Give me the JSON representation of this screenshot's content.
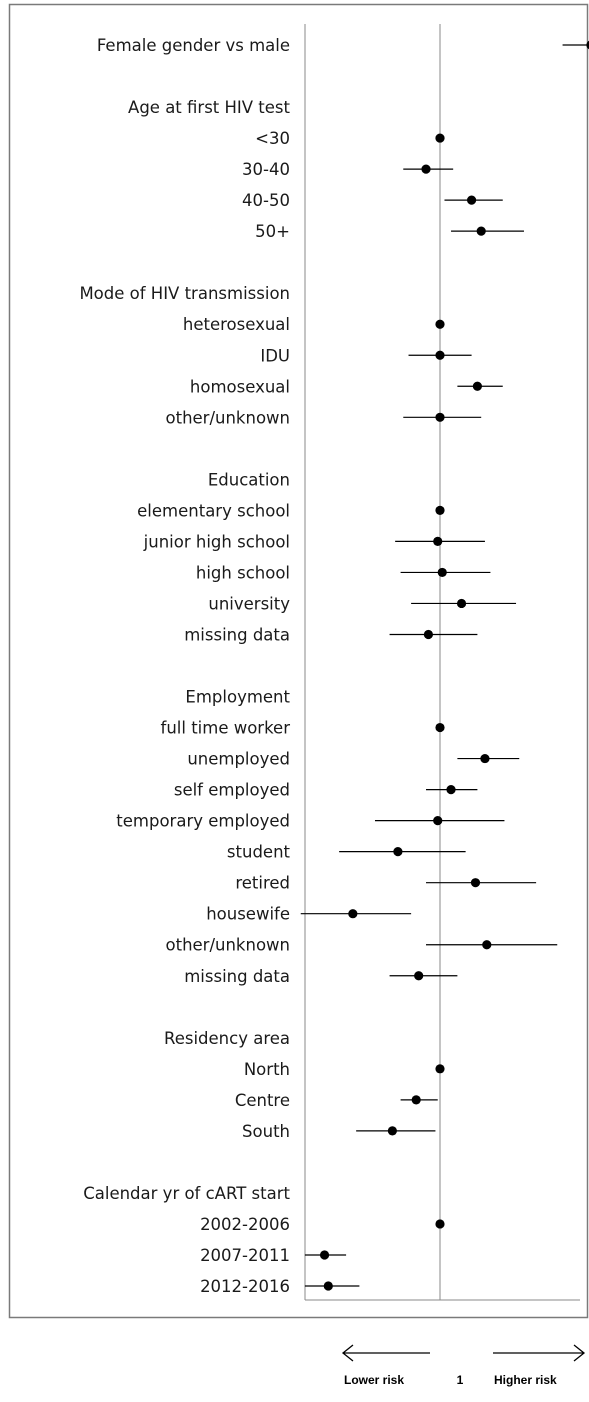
{
  "chart_data": {
    "type": "forest",
    "reference_value": 1,
    "x_scale": "log",
    "grid": false,
    "legend": "none",
    "rows": [
      {
        "label": "Female gender vs male",
        "estimate": 1.95,
        "lower": 1.72,
        "upper": 2.25
      },
      {
        "label": "",
        "estimate": null
      },
      {
        "label": "Age at first HIV test",
        "estimate": null,
        "heading": true
      },
      {
        "label": "<30",
        "estimate": 1.0,
        "lower": 1.0,
        "upper": 1.0
      },
      {
        "label": "30-40",
        "estimate": 0.94,
        "lower": 0.85,
        "upper": 1.06
      },
      {
        "label": "40-50",
        "estimate": 1.15,
        "lower": 1.02,
        "upper": 1.32
      },
      {
        "label": "50+",
        "estimate": 1.2,
        "lower": 1.05,
        "upper": 1.45
      },
      {
        "label": "",
        "estimate": null
      },
      {
        "label": "Mode of HIV transmission",
        "estimate": null,
        "heading": true
      },
      {
        "label": "heterosexual",
        "estimate": 1.0,
        "lower": 1.0,
        "upper": 1.0
      },
      {
        "label": "IDU",
        "estimate": 1.0,
        "lower": 0.87,
        "upper": 1.15
      },
      {
        "label": "homosexual",
        "estimate": 1.18,
        "lower": 1.08,
        "upper": 1.32
      },
      {
        "label": "other/unknown",
        "estimate": 1.0,
        "lower": 0.85,
        "upper": 1.2
      },
      {
        "label": "",
        "estimate": null
      },
      {
        "label": "Education",
        "estimate": null,
        "heading": true
      },
      {
        "label": "elementary school",
        "estimate": 1.0,
        "lower": 1.0,
        "upper": 1.0
      },
      {
        "label": "junior high school",
        "estimate": 0.99,
        "lower": 0.82,
        "upper": 1.22
      },
      {
        "label": "high school",
        "estimate": 1.01,
        "lower": 0.84,
        "upper": 1.25
      },
      {
        "label": "university",
        "estimate": 1.1,
        "lower": 0.88,
        "upper": 1.4
      },
      {
        "label": "missing data",
        "estimate": 0.95,
        "lower": 0.8,
        "upper": 1.18
      },
      {
        "label": "",
        "estimate": null
      },
      {
        "label": "Employment",
        "estimate": null,
        "heading": true
      },
      {
        "label": "full time worker",
        "estimate": 1.0,
        "lower": 1.0,
        "upper": 1.0
      },
      {
        "label": "unemployed",
        "estimate": 1.22,
        "lower": 1.08,
        "upper": 1.42
      },
      {
        "label": "self employed",
        "estimate": 1.05,
        "lower": 0.94,
        "upper": 1.18
      },
      {
        "label": "temporary employed",
        "estimate": 0.99,
        "lower": 0.75,
        "upper": 1.33
      },
      {
        "label": "student",
        "estimate": 0.83,
        "lower": 0.64,
        "upper": 1.12
      },
      {
        "label": "retired",
        "estimate": 1.17,
        "lower": 0.94,
        "upper": 1.53
      },
      {
        "label": "housewife",
        "estimate": 0.68,
        "lower": 0.54,
        "upper": 0.88
      },
      {
        "label": "other/unknown",
        "estimate": 1.23,
        "lower": 0.94,
        "upper": 1.68
      },
      {
        "label": "missing data",
        "estimate": 0.91,
        "lower": 0.8,
        "upper": 1.08
      },
      {
        "label": "",
        "estimate": null
      },
      {
        "label": "Residency area",
        "estimate": null,
        "heading": true
      },
      {
        "label": "North",
        "estimate": 1.0,
        "lower": 1.0,
        "upper": 1.0
      },
      {
        "label": "Centre",
        "estimate": 0.9,
        "lower": 0.84,
        "upper": 0.99
      },
      {
        "label": "South",
        "estimate": 0.81,
        "lower": 0.69,
        "upper": 0.98
      },
      {
        "label": "",
        "estimate": null
      },
      {
        "label": "Calendar yr of cART start",
        "estimate": null,
        "heading": true
      },
      {
        "label": "2002-2006",
        "estimate": 1.0,
        "lower": 1.0,
        "upper": 1.0
      },
      {
        "label": "2007-2011",
        "estimate": 0.6,
        "lower": 0.55,
        "upper": 0.66
      },
      {
        "label": "2012-2016",
        "estimate": 0.61,
        "lower": 0.55,
        "upper": 0.7
      }
    ],
    "footer": {
      "lower_label": "Lower risk",
      "center_label": "1",
      "higher_label": "Higher risk"
    }
  }
}
